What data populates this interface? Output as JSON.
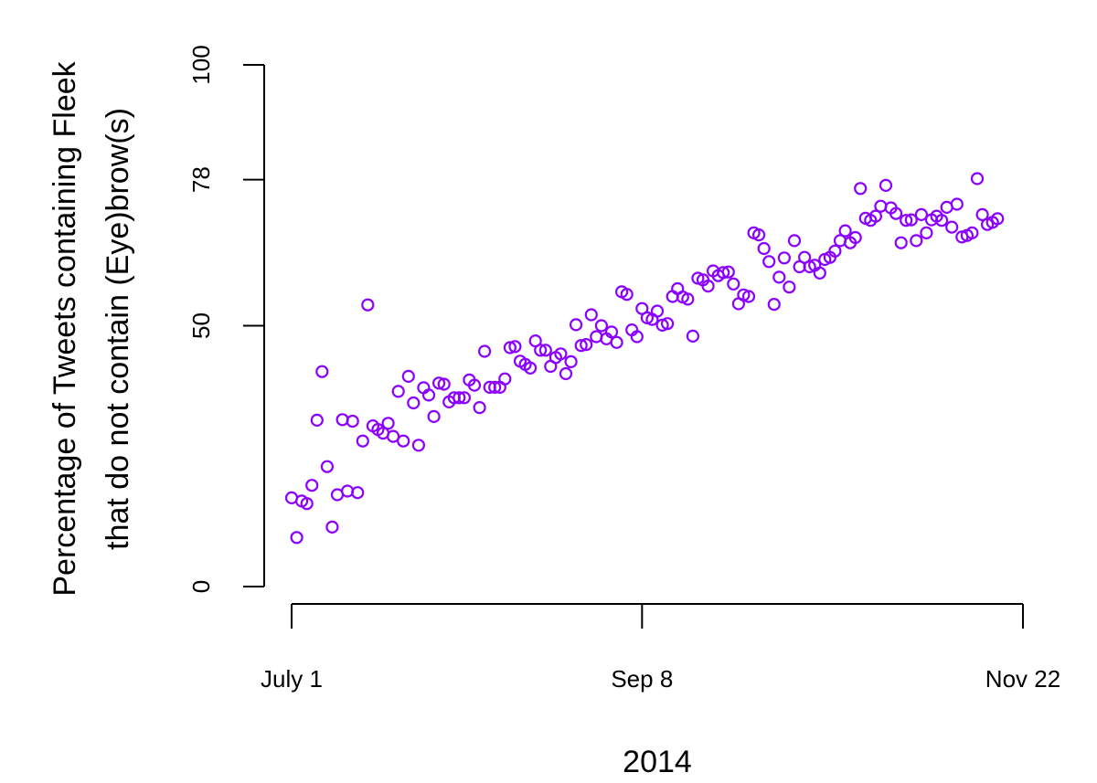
{
  "chart_data": {
    "type": "scatter",
    "title": "",
    "xlabel": "2014",
    "ylabel_lines": [
      "Percentage of Tweets containing Fleek",
      "that do not contain (Eye)brow(s)"
    ],
    "x_ticks": [
      {
        "date": "2014-07-01",
        "label": "July 1"
      },
      {
        "date": "2014-09-08",
        "label": "Sep 8"
      },
      {
        "date": "2014-11-22",
        "label": "Nov 22"
      }
    ],
    "y_ticks": [
      0,
      50,
      78,
      100
    ],
    "xlim": [
      "2014-07-01",
      "2014-11-22"
    ],
    "ylim": [
      0,
      100
    ],
    "grid": false,
    "point_color": "#8B00FF",
    "points": [
      {
        "x": "2014-07-01",
        "y": 17
      },
      {
        "x": "2014-07-02",
        "y": 9.4
      },
      {
        "x": "2014-07-03",
        "y": 16.4
      },
      {
        "x": "2014-07-04",
        "y": 15.9
      },
      {
        "x": "2014-07-05",
        "y": 19.4
      },
      {
        "x": "2014-07-06",
        "y": 31.9
      },
      {
        "x": "2014-07-07",
        "y": 41.2
      },
      {
        "x": "2014-07-08",
        "y": 23
      },
      {
        "x": "2014-07-09",
        "y": 11.4
      },
      {
        "x": "2014-07-10",
        "y": 17.6
      },
      {
        "x": "2014-07-11",
        "y": 32
      },
      {
        "x": "2014-07-12",
        "y": 18.3
      },
      {
        "x": "2014-07-13",
        "y": 31.7
      },
      {
        "x": "2014-07-14",
        "y": 18
      },
      {
        "x": "2014-07-15",
        "y": 27.9
      },
      {
        "x": "2014-07-16",
        "y": 54
      },
      {
        "x": "2014-07-17",
        "y": 30.8
      },
      {
        "x": "2014-07-18",
        "y": 30.1
      },
      {
        "x": "2014-07-19",
        "y": 29.4
      },
      {
        "x": "2014-07-20",
        "y": 31.3
      },
      {
        "x": "2014-07-21",
        "y": 28.8
      },
      {
        "x": "2014-07-22",
        "y": 37.4
      },
      {
        "x": "2014-07-23",
        "y": 27.9
      },
      {
        "x": "2014-07-24",
        "y": 40.3
      },
      {
        "x": "2014-07-25",
        "y": 35.2
      },
      {
        "x": "2014-07-26",
        "y": 27.1
      },
      {
        "x": "2014-07-27",
        "y": 38.1
      },
      {
        "x": "2014-07-28",
        "y": 36.7
      },
      {
        "x": "2014-07-29",
        "y": 32.6
      },
      {
        "x": "2014-07-30",
        "y": 39
      },
      {
        "x": "2014-07-31",
        "y": 38.8
      },
      {
        "x": "2014-08-01",
        "y": 35.4
      },
      {
        "x": "2014-08-02",
        "y": 36.2
      },
      {
        "x": "2014-08-03",
        "y": 36.2
      },
      {
        "x": "2014-08-04",
        "y": 36.2
      },
      {
        "x": "2014-08-05",
        "y": 39.6
      },
      {
        "x": "2014-08-06",
        "y": 38.6
      },
      {
        "x": "2014-08-07",
        "y": 34.3
      },
      {
        "x": "2014-08-08",
        "y": 45.1
      },
      {
        "x": "2014-08-09",
        "y": 38.2
      },
      {
        "x": "2014-08-10",
        "y": 38.2
      },
      {
        "x": "2014-08-11",
        "y": 38.2
      },
      {
        "x": "2014-08-12",
        "y": 39.8
      },
      {
        "x": "2014-08-13",
        "y": 45.8
      },
      {
        "x": "2014-08-14",
        "y": 46
      },
      {
        "x": "2014-08-15",
        "y": 43.2
      },
      {
        "x": "2014-08-16",
        "y": 42.6
      },
      {
        "x": "2014-08-17",
        "y": 41.9
      },
      {
        "x": "2014-08-18",
        "y": 47.1
      },
      {
        "x": "2014-08-19",
        "y": 45.3
      },
      {
        "x": "2014-08-20",
        "y": 45.3
      },
      {
        "x": "2014-08-21",
        "y": 42.2
      },
      {
        "x": "2014-08-22",
        "y": 43.9
      },
      {
        "x": "2014-08-23",
        "y": 44.6
      },
      {
        "x": "2014-08-24",
        "y": 40.8
      },
      {
        "x": "2014-08-25",
        "y": 43.1
      },
      {
        "x": "2014-08-26",
        "y": 50.2
      },
      {
        "x": "2014-08-27",
        "y": 46.2
      },
      {
        "x": "2014-08-28",
        "y": 46.4
      },
      {
        "x": "2014-08-29",
        "y": 52.1
      },
      {
        "x": "2014-08-30",
        "y": 47.9
      },
      {
        "x": "2014-08-31",
        "y": 50
      },
      {
        "x": "2014-09-01",
        "y": 47.5
      },
      {
        "x": "2014-09-02",
        "y": 48.8
      },
      {
        "x": "2014-09-03",
        "y": 46.8
      },
      {
        "x": "2014-09-04",
        "y": 56.5
      },
      {
        "x": "2014-09-05",
        "y": 56
      },
      {
        "x": "2014-09-06",
        "y": 49.2
      },
      {
        "x": "2014-09-07",
        "y": 47.9
      },
      {
        "x": "2014-09-08",
        "y": 53.3
      },
      {
        "x": "2014-09-09",
        "y": 51.5
      },
      {
        "x": "2014-09-10",
        "y": 51.2
      },
      {
        "x": "2014-09-11",
        "y": 52.8
      },
      {
        "x": "2014-09-12",
        "y": 50.1
      },
      {
        "x": "2014-09-13",
        "y": 50.4
      },
      {
        "x": "2014-09-14",
        "y": 55.6
      },
      {
        "x": "2014-09-15",
        "y": 57.1
      },
      {
        "x": "2014-09-16",
        "y": 55.5
      },
      {
        "x": "2014-09-17",
        "y": 55.1
      },
      {
        "x": "2014-09-18",
        "y": 48
      },
      {
        "x": "2014-09-19",
        "y": 59.1
      },
      {
        "x": "2014-09-20",
        "y": 58.8
      },
      {
        "x": "2014-09-21",
        "y": 57.6
      },
      {
        "x": "2014-09-22",
        "y": 60.5
      },
      {
        "x": "2014-09-23",
        "y": 59.6
      },
      {
        "x": "2014-09-24",
        "y": 60.2
      },
      {
        "x": "2014-09-25",
        "y": 60.3
      },
      {
        "x": "2014-09-26",
        "y": 58
      },
      {
        "x": "2014-09-27",
        "y": 54.2
      },
      {
        "x": "2014-09-28",
        "y": 55.9
      },
      {
        "x": "2014-09-29",
        "y": 55.6
      },
      {
        "x": "2014-09-30",
        "y": 67.8
      },
      {
        "x": "2014-10-01",
        "y": 67.4
      },
      {
        "x": "2014-10-02",
        "y": 64.8
      },
      {
        "x": "2014-10-03",
        "y": 62.3
      },
      {
        "x": "2014-10-04",
        "y": 54.1
      },
      {
        "x": "2014-10-05",
        "y": 59.3
      },
      {
        "x": "2014-10-06",
        "y": 63
      },
      {
        "x": "2014-10-07",
        "y": 57.4
      },
      {
        "x": "2014-10-08",
        "y": 66.3
      },
      {
        "x": "2014-10-09",
        "y": 61.3
      },
      {
        "x": "2014-10-10",
        "y": 63.1
      },
      {
        "x": "2014-10-11",
        "y": 61.3
      },
      {
        "x": "2014-10-12",
        "y": 61.6
      },
      {
        "x": "2014-10-13",
        "y": 60.1
      },
      {
        "x": "2014-10-14",
        "y": 62.7
      },
      {
        "x": "2014-10-15",
        "y": 63.1
      },
      {
        "x": "2014-10-16",
        "y": 64.3
      },
      {
        "x": "2014-10-17",
        "y": 66.3
      },
      {
        "x": "2014-10-18",
        "y": 68.2
      },
      {
        "x": "2014-10-19",
        "y": 65.9
      },
      {
        "x": "2014-10-20",
        "y": 66.9
      },
      {
        "x": "2014-10-21",
        "y": 76.3
      },
      {
        "x": "2014-10-22",
        "y": 70.6
      },
      {
        "x": "2014-10-23",
        "y": 70.2
      },
      {
        "x": "2014-10-24",
        "y": 71
      },
      {
        "x": "2014-10-25",
        "y": 72.9
      },
      {
        "x": "2014-10-26",
        "y": 76.9
      },
      {
        "x": "2014-10-27",
        "y": 72.6
      },
      {
        "x": "2014-10-28",
        "y": 71.5
      },
      {
        "x": "2014-10-29",
        "y": 65.9
      },
      {
        "x": "2014-10-30",
        "y": 70.2
      },
      {
        "x": "2014-10-31",
        "y": 70.3
      },
      {
        "x": "2014-11-01",
        "y": 66.3
      },
      {
        "x": "2014-11-02",
        "y": 71.3
      },
      {
        "x": "2014-11-03",
        "y": 67.8
      },
      {
        "x": "2014-11-04",
        "y": 70.3
      },
      {
        "x": "2014-11-05",
        "y": 71
      },
      {
        "x": "2014-11-06",
        "y": 70.2
      },
      {
        "x": "2014-11-07",
        "y": 72.7
      },
      {
        "x": "2014-11-08",
        "y": 68.9
      },
      {
        "x": "2014-11-09",
        "y": 73.3
      },
      {
        "x": "2014-11-10",
        "y": 67
      },
      {
        "x": "2014-11-11",
        "y": 67.3
      },
      {
        "x": "2014-11-12",
        "y": 67.8
      },
      {
        "x": "2014-11-13",
        "y": 78.2
      },
      {
        "x": "2014-11-14",
        "y": 71.3
      },
      {
        "x": "2014-11-15",
        "y": 69.4
      },
      {
        "x": "2014-11-16",
        "y": 69.8
      },
      {
        "x": "2014-11-17",
        "y": 70.5
      }
    ]
  }
}
